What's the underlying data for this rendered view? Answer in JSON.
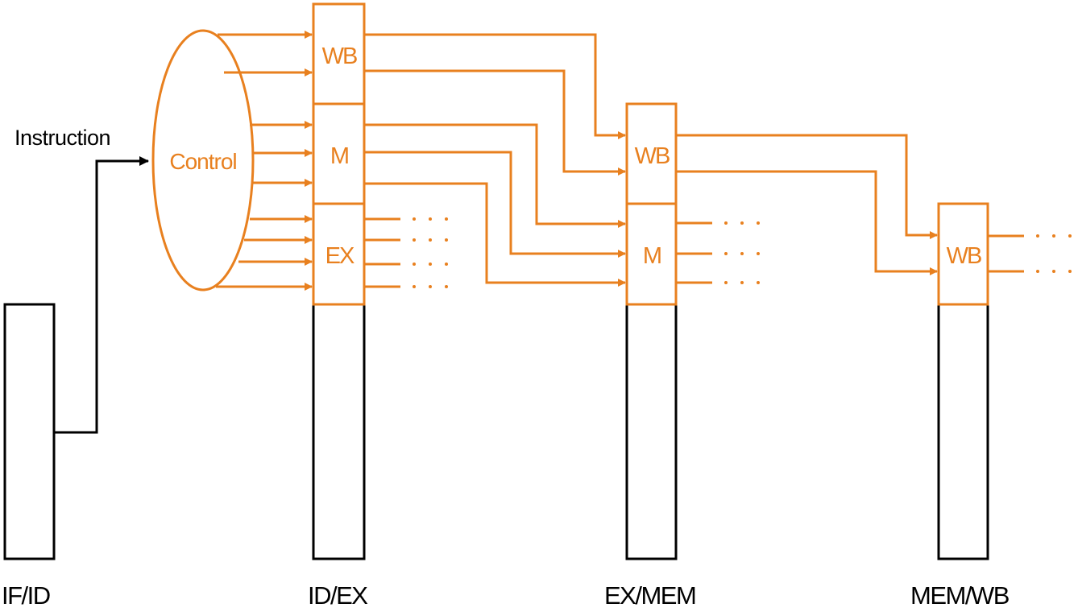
{
  "diagram": {
    "colors": {
      "control": "#E8801F",
      "datapath": "#000000",
      "background": "#FFFFFF"
    },
    "input_label": "Instruction",
    "control_unit_label": "Control",
    "stages": [
      {
        "label": "IF/ID",
        "fields": []
      },
      {
        "label": "ID/EX",
        "fields": [
          "WB",
          "M",
          "EX"
        ]
      },
      {
        "label": "EX/MEM",
        "fields": [
          "WB",
          "M"
        ]
      },
      {
        "label": "MEM/WB",
        "fields": [
          "WB"
        ]
      }
    ]
  }
}
